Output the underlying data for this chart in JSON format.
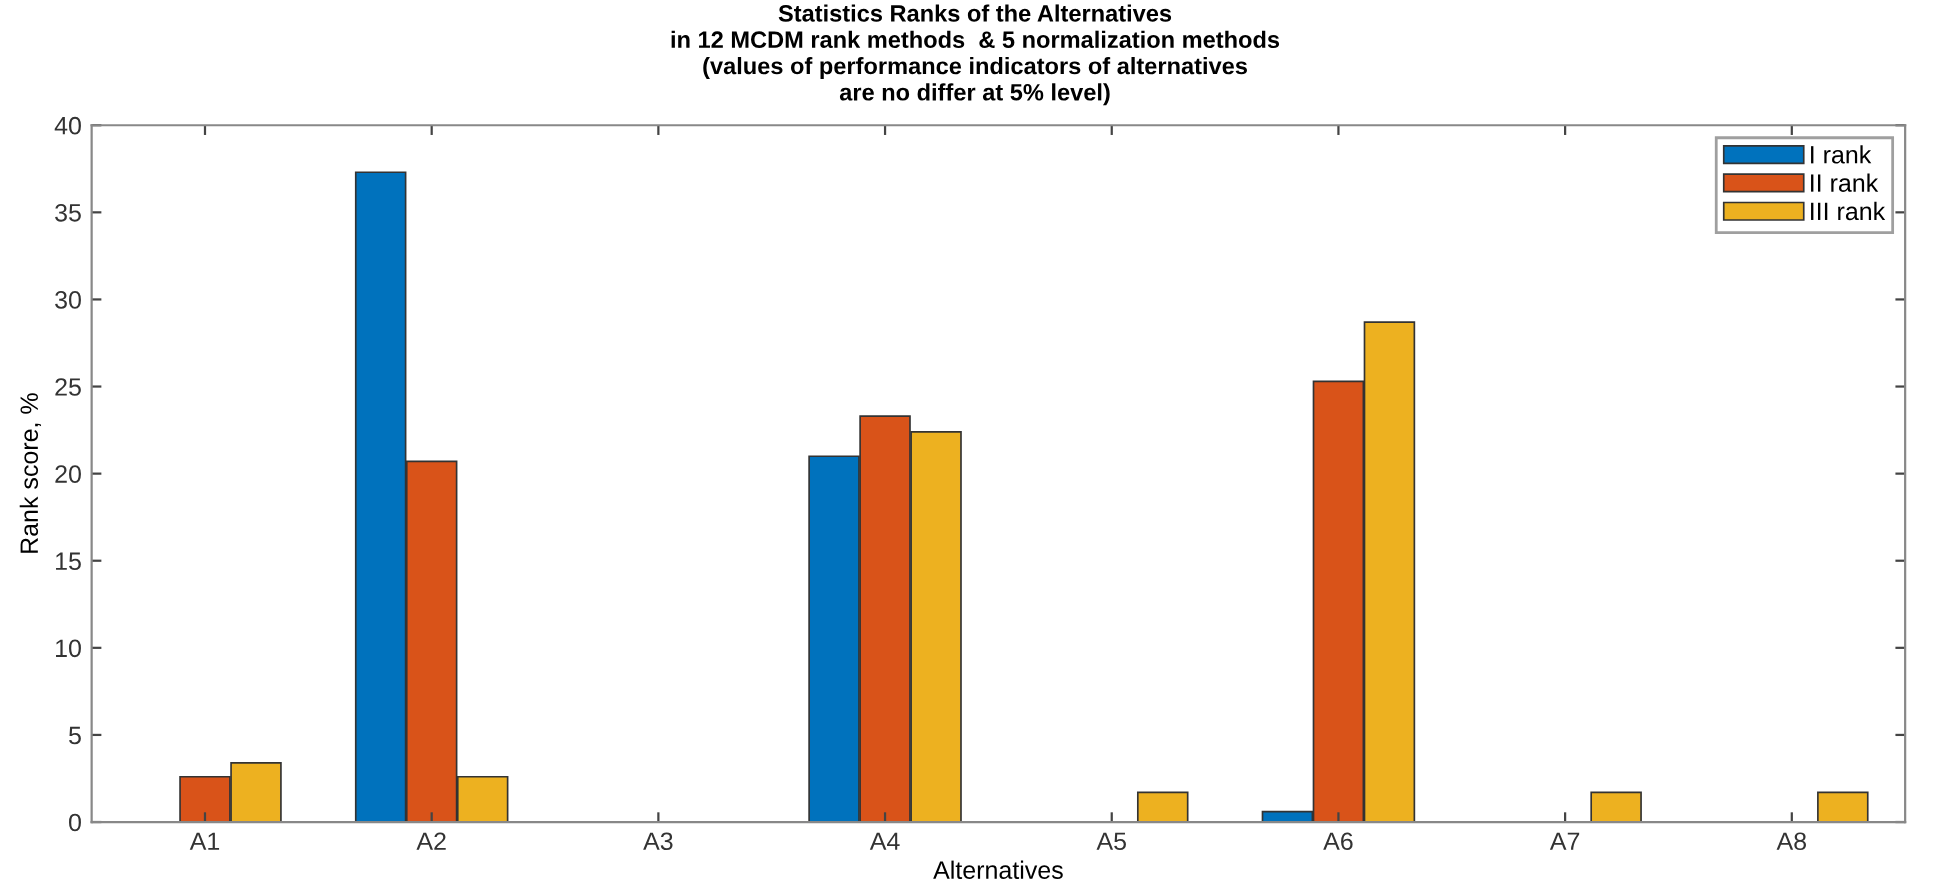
{
  "chart_data": {
    "type": "bar",
    "title": "Statistics Ranks of the Alternatives\nin 12 MCDM rank methods  & 5 normalization methods\n(values of performance indicators of alternatives\nare no differ at 5% level)",
    "xlabel": "Alternatives",
    "ylabel": "Rank score, %",
    "categories": [
      "A1",
      "A2",
      "A3",
      "A4",
      "A5",
      "A6",
      "A7",
      "A8"
    ],
    "series": [
      {
        "name": "I rank",
        "color": "#0072bd",
        "values": [
          null,
          37.3,
          null,
          21.0,
          null,
          0.6,
          null,
          null
        ]
      },
      {
        "name": "II rank",
        "color": "#d95319",
        "values": [
          2.6,
          20.7,
          null,
          23.3,
          null,
          25.3,
          null,
          null
        ]
      },
      {
        "name": "III rank",
        "color": "#edb120",
        "values": [
          3.4,
          2.6,
          null,
          22.4,
          1.7,
          28.7,
          1.7,
          1.7
        ]
      }
    ],
    "ylim": [
      0,
      40
    ],
    "yticks": [
      0,
      5,
      10,
      15,
      20,
      25,
      30,
      35,
      40
    ],
    "grid": false,
    "legend": "top right"
  }
}
